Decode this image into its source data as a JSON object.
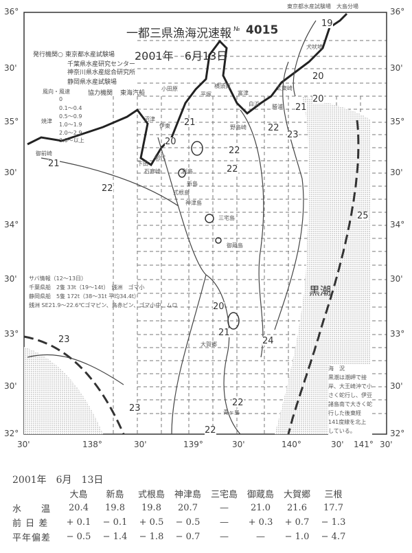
{
  "header": {
    "org_top": "東京都水産試験場　大島分場",
    "title": "一都三県漁海況速報",
    "number_label": "№",
    "number": "4015",
    "issuer_label": "発行機関○",
    "issuers": [
      "東京都水産試験場",
      "千葉県水産研究センター",
      "神奈川県水産総合研究所",
      "静岡県水産試験場"
    ],
    "date": "2001年　6月13日",
    "cooperator_label": "協力機関",
    "cooperator": "東海汽船"
  },
  "legend": {
    "header": "風向・風速",
    "items": [
      "0",
      "0.1〜0.4",
      "0.5〜0.9",
      "1.0〜1.9",
      "2.0〜2.9",
      "3.0〜以上"
    ]
  },
  "lat_labels": [
    "36°",
    "30'",
    "35°",
    "30'",
    "34°",
    "30'",
    "33°",
    "30'",
    "32°"
  ],
  "lon_labels": [
    "30'",
    "138°",
    "30'",
    "139°",
    "30'",
    "140°",
    "30'",
    "141°",
    "30'"
  ],
  "contour_labels": [
    "19",
    "20",
    "21",
    "21",
    "22",
    "22",
    "23",
    "21",
    "20",
    "22",
    "22",
    "20",
    "21",
    "24",
    "23",
    "22",
    "22",
    "23",
    "25",
    "20"
  ],
  "place_names": [
    "犬吠埼",
    "平塚",
    "横須賀",
    "富津",
    "太東崎",
    "勝浦",
    "小田原",
    "沼津",
    "伊東",
    "焼津",
    "御前崎",
    "下田",
    "石廊崎",
    "利島",
    "新島",
    "式根島",
    "神津島",
    "三宅島",
    "御蔵島",
    "大賀郷",
    "青ヶ島",
    "網代",
    "野島崎",
    "白浜"
  ],
  "kuroshio_label": "黒潮",
  "saba_info": [
    "サバ情報（12〜13日）",
    "千葉県船　2隻 33t（19〜14t）　銭洲　ゴマ小",
    "静岡県船　5隻 172t（38〜31t 平均34.4t）",
    "銭洲 SE21.9〜22.6℃ゴマピン、鳥赤ピン、ゴマ小中、ムロ"
  ],
  "sea_conditions": {
    "title": "海　況",
    "text": [
      "黒潮は潮岬で接",
      "岸、大王崎沖で小",
      "さく蛇行し、伊豆",
      "諸島南で大きく蛇",
      "行した後東経",
      "141度線を北上",
      "している。"
    ]
  },
  "table": {
    "date": "2001年　6月　13日",
    "columns": [
      "大島",
      "新島",
      "式根島",
      "神津島",
      "三宅島",
      "御蔵島",
      "大賀郷",
      "三根"
    ],
    "rows": [
      {
        "label": "水　　温",
        "values": [
          "20.4",
          "19.8",
          "19.8",
          "20.7",
          "—",
          "21.0",
          "21.6",
          "17.7"
        ]
      },
      {
        "label": "前 日 差",
        "values": [
          "+ 0.1",
          "− 0.1",
          "+ 0.5",
          "− 0.5",
          "—",
          "+ 0.3",
          "+ 0.7",
          "− 1.3"
        ]
      },
      {
        "label": "平年偏差",
        "values": [
          "− 0.5",
          "− 1.4",
          "− 1.8",
          "− 0.7",
          "—",
          "—",
          "− 1.0",
          "− 4.7"
        ]
      }
    ]
  },
  "colors": {
    "ink": "#333333",
    "stipple": "#bbbbbb"
  }
}
